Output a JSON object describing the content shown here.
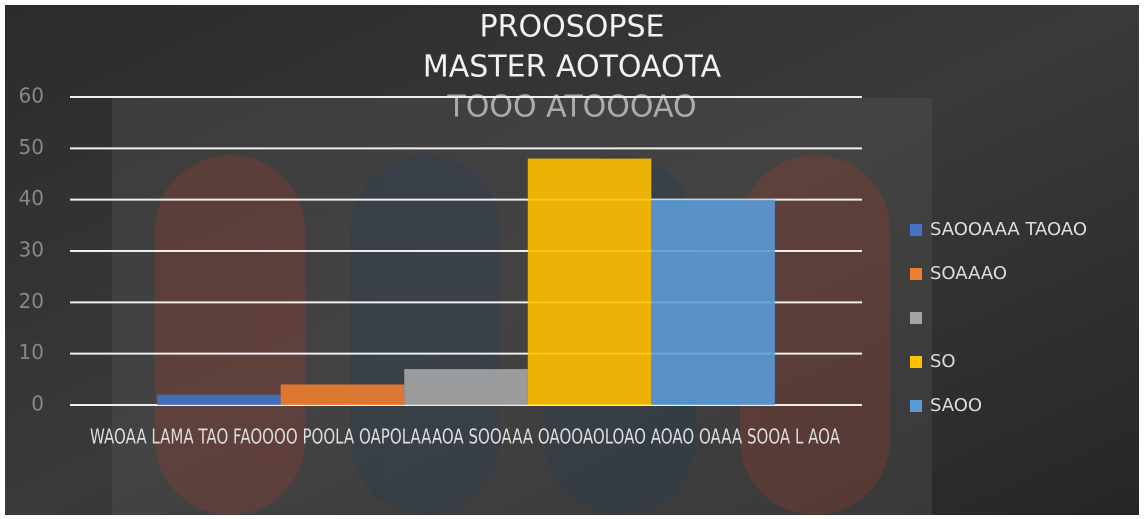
{
  "chart_data": {
    "type": "bar",
    "title": [
      "PROOSOPSE",
      "MASTER AOTOAOTA",
      "TOOO ATOOOAO"
    ],
    "categories": [
      "WAOAA LAMA TAO FAOOOO POOLA OAPOLAAAOA SOOAAA OAOOAOLOAO AOAO OAAA SOOA L AOA"
    ],
    "series": [
      {
        "name": "SAOOAAA TAOAO",
        "color": "#4472c4",
        "values": [
          2
        ]
      },
      {
        "name": "SOAAAO",
        "color": "#ed7d31",
        "values": [
          4
        ]
      },
      {
        "name": null,
        "color": "#a5a5a5",
        "values": [
          7
        ]
      },
      {
        "name": "SO",
        "color": "#ffc000",
        "values": [
          48
        ]
      },
      {
        "name": "SAOO",
        "color": "#5b9bd5",
        "values": [
          40
        ]
      }
    ],
    "ylim": [
      0,
      60
    ],
    "yticks": [
      0,
      10,
      20,
      30,
      40,
      50,
      60
    ],
    "grid": true,
    "legend": "right"
  }
}
